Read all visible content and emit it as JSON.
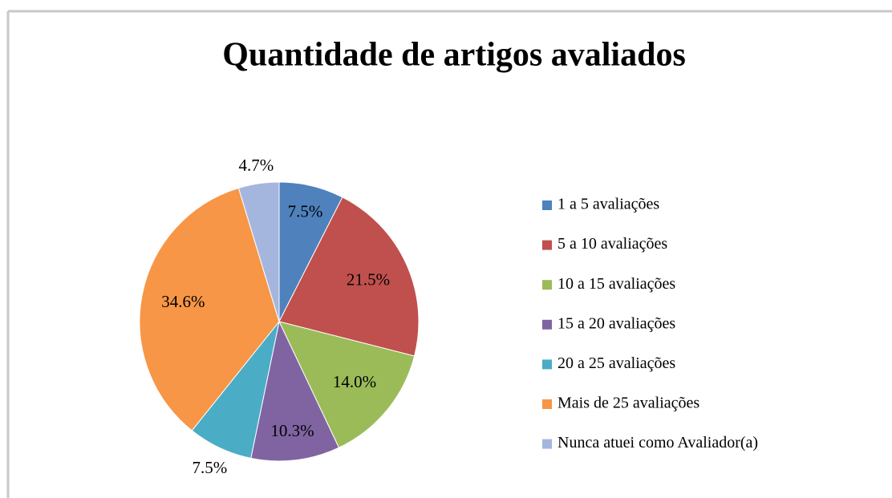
{
  "chart_data": {
    "type": "pie",
    "title": "Quantidade de artigos avaliados",
    "categories": [
      "1 a 5 avaliações",
      "5 a 10 avaliações",
      "10 a 15 avaliações",
      "15 a 20 avaliações",
      "20 a 25 avaliações",
      "Mais de 25 avaliações",
      "Nunca atuei como Avaliador(a)"
    ],
    "values": [
      7.5,
      21.5,
      14.0,
      10.3,
      7.5,
      34.6,
      4.7
    ],
    "value_labels": [
      "7.5%",
      "21.5%",
      "14.0%",
      "10.3%",
      "7.5%",
      "34.6%",
      "4.7%"
    ],
    "colors": [
      "#4f81bd",
      "#c0504d",
      "#9bbb59",
      "#8064a2",
      "#4bacc6",
      "#f79646",
      "#a5b6de"
    ],
    "legend": "right"
  }
}
